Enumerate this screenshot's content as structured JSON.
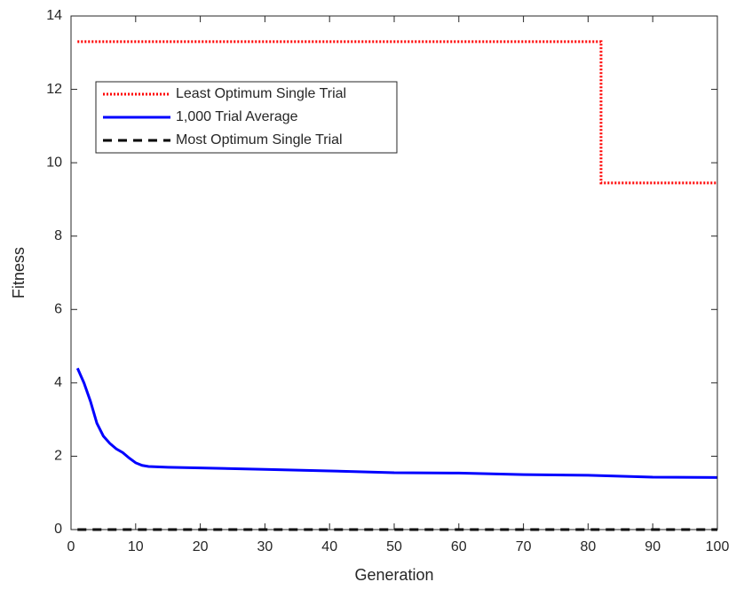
{
  "chart_data": {
    "type": "line",
    "x_label": "Generation",
    "y_label": "Fitness",
    "xlim": [
      0,
      100
    ],
    "xticks": [
      0,
      10,
      20,
      30,
      40,
      50,
      60,
      70,
      80,
      90,
      100
    ],
    "ylim": [
      0,
      14
    ],
    "yticks": [
      0,
      2,
      4,
      6,
      8,
      10,
      12,
      14
    ],
    "legend": "upper-left",
    "series": [
      {
        "name": "Least Optimum Single Trial",
        "color": "#ff0000",
        "style": "dotted",
        "x": [
          1,
          82,
          82,
          100
        ],
        "values": [
          13.3,
          13.3,
          9.45,
          9.45
        ]
      },
      {
        "name": "1,000 Trial Average",
        "color": "#0000ff",
        "style": "solid",
        "x": [
          1,
          2,
          3,
          4,
          5,
          6,
          7,
          8,
          9,
          10,
          11,
          12,
          15,
          20,
          30,
          40,
          50,
          60,
          70,
          80,
          90,
          100
        ],
        "values": [
          4.4,
          4.0,
          3.5,
          2.9,
          2.55,
          2.35,
          2.2,
          2.1,
          1.95,
          1.82,
          1.75,
          1.72,
          1.7,
          1.68,
          1.64,
          1.6,
          1.55,
          1.54,
          1.5,
          1.48,
          1.43,
          1.42
        ]
      },
      {
        "name": "Most Optimum Single Trial",
        "color": "#000000",
        "style": "dashed",
        "x": [
          1,
          100
        ],
        "values": [
          0,
          0
        ]
      }
    ]
  }
}
